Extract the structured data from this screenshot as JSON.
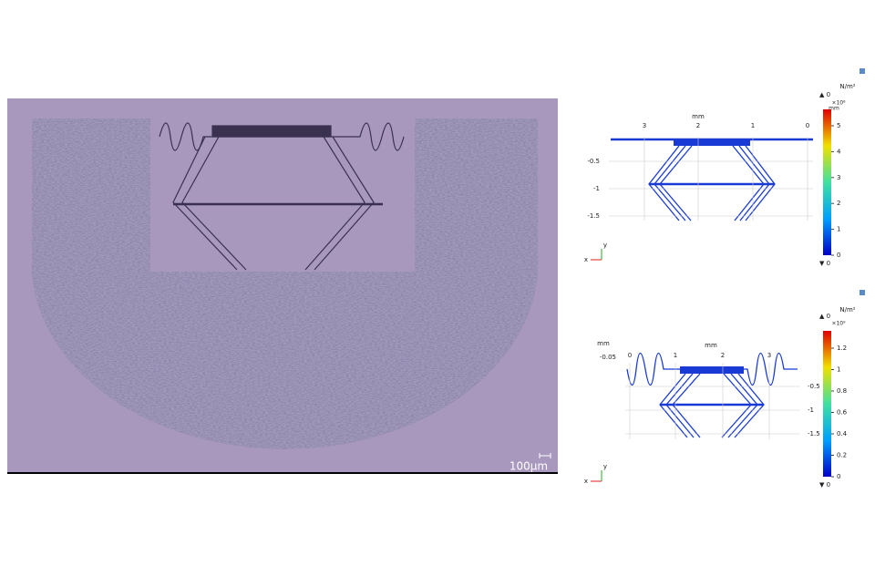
{
  "micrograph": {
    "scale_bar": "100μm"
  },
  "plots": [
    {
      "x_unit": "mm",
      "x_ticks": [
        "3",
        "2",
        "1",
        "0"
      ],
      "y_ticks": [
        "-0.5",
        "-1",
        "-1.5"
      ],
      "axes": {
        "x": "x",
        "y": "y"
      },
      "colorbar": {
        "unit": "N/m²",
        "multiplier": "×10⁸",
        "unit2": "mm",
        "max": "▲ 0",
        "min": "▼ 0",
        "ticks": [
          "5",
          "4",
          "3",
          "2",
          "1",
          "0"
        ]
      }
    },
    {
      "x_unit": "mm",
      "y_unit": "mm",
      "y_top": "-0.05",
      "x_ticks": [
        "0",
        "1",
        "2",
        "3"
      ],
      "y_ticks": [
        "-0.5",
        "-1",
        "-1.5"
      ],
      "axes": {
        "x": "x",
        "y": "y"
      },
      "colorbar": {
        "unit": "N/m²",
        "multiplier": "×10⁹",
        "max": "▲ 0",
        "min": "▼ 0",
        "ticks": [
          "1.2",
          "1",
          "0.8",
          "0.6",
          "0.4",
          "0.2",
          "0"
        ]
      }
    }
  ]
}
